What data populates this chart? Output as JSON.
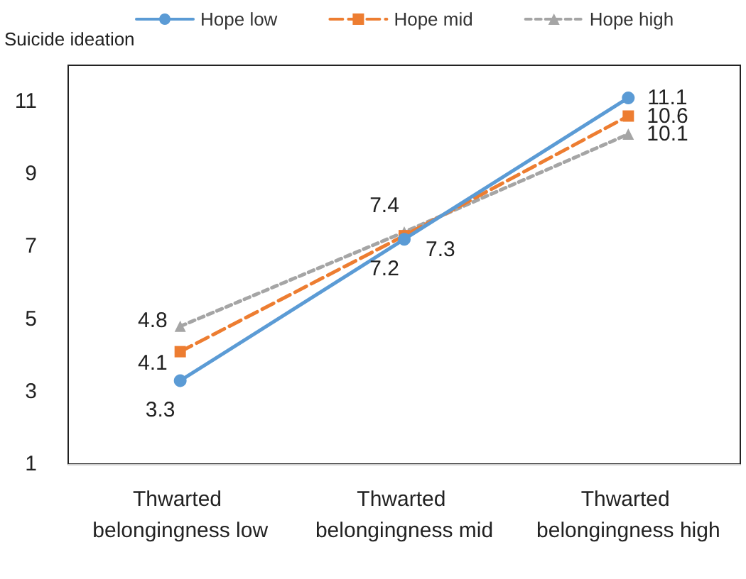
{
  "chart_data": {
    "type": "line",
    "ylabel": "Suicide ideation",
    "categories": [
      "Thwarted belongingness low",
      "Thwarted belongingness mid",
      "Thwarted belongingness high"
    ],
    "series": [
      {
        "name": "Hope low",
        "color": "#5b9bd5",
        "values": [
          3.3,
          7.2,
          11.1
        ],
        "marker": "circle",
        "line_style": "solid"
      },
      {
        "name": "Hope mid",
        "color": "#ed7d31",
        "values": [
          4.1,
          7.3,
          10.6
        ],
        "marker": "square",
        "line_style": "dashed"
      },
      {
        "name": "Hope high",
        "color": "#a5a5a5",
        "values": [
          4.8,
          7.4,
          10.1
        ],
        "marker": "triangle",
        "line_style": "dotted"
      }
    ],
    "ylim": [
      1,
      12
    ],
    "yticks": [
      1,
      3,
      5,
      7,
      9,
      11
    ],
    "grid": false,
    "legend": "top",
    "data_labels": true
  }
}
